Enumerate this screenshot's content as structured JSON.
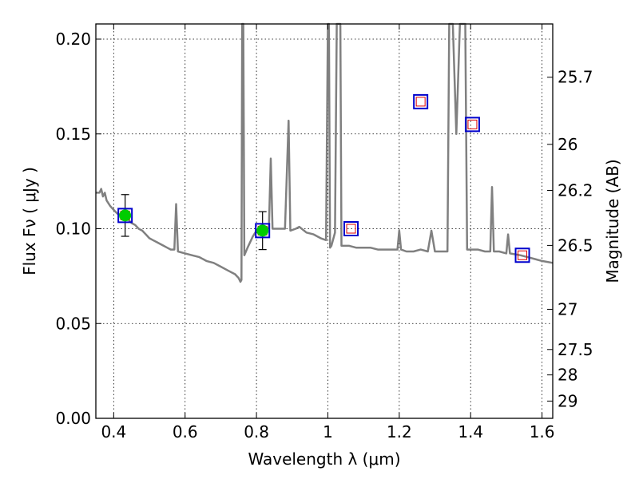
{
  "chart_data": {
    "type": "scatter",
    "title": "",
    "xlabel": "Wavelength  λ (μm)",
    "ylabel": "Flux  Fν  ( μJy )",
    "y2label": "Magnitude (AB)",
    "xlim": [
      0.35,
      1.63
    ],
    "ylim": [
      0.0,
      0.208
    ],
    "grid": true,
    "legend": "none",
    "x_ticks": [
      {
        "value": 0.4,
        "label": "0.4"
      },
      {
        "value": 0.6,
        "label": "0.6"
      },
      {
        "value": 0.8,
        "label": "0.8"
      },
      {
        "value": 1.0,
        "label": "1"
      },
      {
        "value": 1.2,
        "label": "1.2"
      },
      {
        "value": 1.4,
        "label": "1.4"
      },
      {
        "value": 1.6,
        "label": "1.6"
      }
    ],
    "y_ticks": [
      {
        "value": 0.0,
        "label": "0.00"
      },
      {
        "value": 0.05,
        "label": "0.05"
      },
      {
        "value": 0.1,
        "label": "0.10"
      },
      {
        "value": 0.15,
        "label": "0.15"
      },
      {
        "value": 0.2,
        "label": "0.20"
      }
    ],
    "y2_ticks": [
      {
        "flux": 0.1799,
        "label": "25.7"
      },
      {
        "flux": 0.1445,
        "label": "26"
      },
      {
        "flux": 0.1202,
        "label": "26.2"
      },
      {
        "flux": 0.0912,
        "label": "26.5"
      },
      {
        "flux": 0.0575,
        "label": "27"
      },
      {
        "flux": 0.0363,
        "label": "27.5"
      },
      {
        "flux": 0.0229,
        "label": "28"
      },
      {
        "flux": 0.0091,
        "label": "29"
      }
    ],
    "spectrum": {
      "color": "#808080",
      "points": [
        [
          0.35,
          0.119
        ],
        [
          0.36,
          0.119
        ],
        [
          0.365,
          0.121
        ],
        [
          0.37,
          0.117
        ],
        [
          0.375,
          0.119
        ],
        [
          0.38,
          0.115
        ],
        [
          0.39,
          0.112
        ],
        [
          0.4,
          0.11
        ],
        [
          0.41,
          0.108
        ],
        [
          0.42,
          0.107
        ],
        [
          0.43,
          0.106
        ],
        [
          0.44,
          0.105
        ],
        [
          0.45,
          0.103
        ],
        [
          0.46,
          0.102
        ],
        [
          0.47,
          0.1
        ],
        [
          0.48,
          0.099
        ],
        [
          0.49,
          0.097
        ],
        [
          0.5,
          0.095
        ],
        [
          0.51,
          0.094
        ],
        [
          0.52,
          0.093
        ],
        [
          0.53,
          0.092
        ],
        [
          0.54,
          0.091
        ],
        [
          0.55,
          0.09
        ],
        [
          0.56,
          0.089
        ],
        [
          0.57,
          0.089
        ],
        [
          0.575,
          0.113
        ],
        [
          0.58,
          0.088
        ],
        [
          0.6,
          0.087
        ],
        [
          0.62,
          0.086
        ],
        [
          0.64,
          0.085
        ],
        [
          0.66,
          0.083
        ],
        [
          0.68,
          0.082
        ],
        [
          0.7,
          0.08
        ],
        [
          0.72,
          0.078
        ],
        [
          0.74,
          0.076
        ],
        [
          0.75,
          0.074
        ],
        [
          0.755,
          0.072
        ],
        [
          0.758,
          0.073
        ],
        [
          0.76,
          0.208
        ],
        [
          0.763,
          0.208
        ],
        [
          0.766,
          0.086
        ],
        [
          0.775,
          0.09
        ],
        [
          0.79,
          0.096
        ],
        [
          0.8,
          0.099
        ],
        [
          0.81,
          0.1
        ],
        [
          0.82,
          0.099
        ],
        [
          0.83,
          0.1
        ],
        [
          0.835,
          0.101
        ],
        [
          0.84,
          0.137
        ],
        [
          0.845,
          0.1
        ],
        [
          0.86,
          0.1
        ],
        [
          0.88,
          0.1
        ],
        [
          0.89,
          0.157
        ],
        [
          0.895,
          0.099
        ],
        [
          0.91,
          0.1
        ],
        [
          0.92,
          0.101
        ],
        [
          0.94,
          0.098
        ],
        [
          0.96,
          0.097
        ],
        [
          0.98,
          0.095
        ],
        [
          0.995,
          0.094
        ],
        [
          1.0,
          0.208
        ],
        [
          1.003,
          0.208
        ],
        [
          1.006,
          0.09
        ],
        [
          1.01,
          0.091
        ],
        [
          1.02,
          0.098
        ],
        [
          1.025,
          0.208
        ],
        [
          1.035,
          0.208
        ],
        [
          1.038,
          0.091
        ],
        [
          1.06,
          0.091
        ],
        [
          1.08,
          0.09
        ],
        [
          1.1,
          0.09
        ],
        [
          1.12,
          0.09
        ],
        [
          1.14,
          0.089
        ],
        [
          1.16,
          0.089
        ],
        [
          1.18,
          0.089
        ],
        [
          1.195,
          0.089
        ],
        [
          1.2,
          0.099
        ],
        [
          1.205,
          0.089
        ],
        [
          1.22,
          0.088
        ],
        [
          1.24,
          0.088
        ],
        [
          1.26,
          0.089
        ],
        [
          1.28,
          0.088
        ],
        [
          1.29,
          0.099
        ],
        [
          1.3,
          0.088
        ],
        [
          1.32,
          0.088
        ],
        [
          1.335,
          0.088
        ],
        [
          1.34,
          0.208
        ],
        [
          1.35,
          0.208
        ],
        [
          1.36,
          0.15
        ],
        [
          1.37,
          0.208
        ],
        [
          1.385,
          0.208
        ],
        [
          1.39,
          0.089
        ],
        [
          1.42,
          0.089
        ],
        [
          1.44,
          0.088
        ],
        [
          1.455,
          0.088
        ],
        [
          1.46,
          0.122
        ],
        [
          1.465,
          0.088
        ],
        [
          1.48,
          0.088
        ],
        [
          1.5,
          0.087
        ],
        [
          1.505,
          0.097
        ],
        [
          1.51,
          0.087
        ],
        [
          1.54,
          0.086
        ],
        [
          1.56,
          0.085
        ],
        [
          1.58,
          0.084
        ],
        [
          1.6,
          0.083
        ],
        [
          1.63,
          0.082
        ]
      ]
    },
    "model_points": {
      "marker": "square",
      "stroke": "#0000cc",
      "inner_stroke": "#dd0000",
      "points": [
        {
          "x": 0.432,
          "y": 0.107
        },
        {
          "x": 0.817,
          "y": 0.099
        },
        {
          "x": 1.065,
          "y": 0.1
        },
        {
          "x": 1.26,
          "y": 0.167
        },
        {
          "x": 1.405,
          "y": 0.155
        },
        {
          "x": 1.545,
          "y": 0.086
        }
      ]
    },
    "observed_points": {
      "marker": "circle",
      "fill": "#00cc00",
      "points": [
        {
          "x": 0.432,
          "y": 0.107,
          "yerr": 0.011
        },
        {
          "x": 0.817,
          "y": 0.099,
          "yerr": 0.01
        }
      ]
    }
  }
}
